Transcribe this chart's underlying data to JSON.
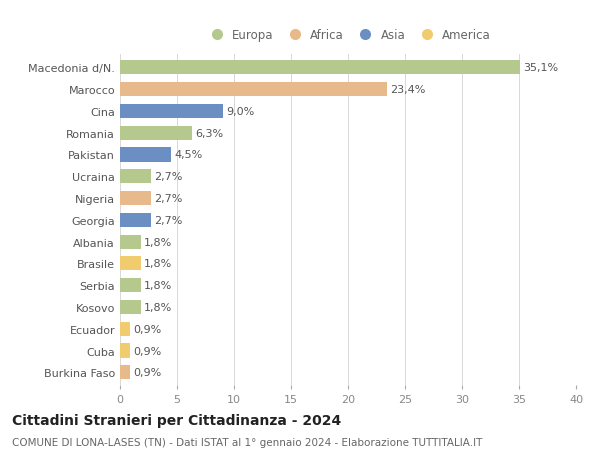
{
  "categories": [
    "Macedonia d/N.",
    "Marocco",
    "Cina",
    "Romania",
    "Pakistan",
    "Ucraina",
    "Nigeria",
    "Georgia",
    "Albania",
    "Brasile",
    "Serbia",
    "Kosovo",
    "Ecuador",
    "Cuba",
    "Burkina Faso"
  ],
  "values": [
    35.1,
    23.4,
    9.0,
    6.3,
    4.5,
    2.7,
    2.7,
    2.7,
    1.8,
    1.8,
    1.8,
    1.8,
    0.9,
    0.9,
    0.9
  ],
  "labels": [
    "35,1%",
    "23,4%",
    "9,0%",
    "6,3%",
    "4,5%",
    "2,7%",
    "2,7%",
    "2,7%",
    "1,8%",
    "1,8%",
    "1,8%",
    "1,8%",
    "0,9%",
    "0,9%",
    "0,9%"
  ],
  "continents": [
    "Europa",
    "Africa",
    "Asia",
    "Europa",
    "Asia",
    "Europa",
    "Africa",
    "Asia",
    "Europa",
    "America",
    "Europa",
    "Europa",
    "America",
    "America",
    "Africa"
  ],
  "colors": {
    "Europa": "#b5c98e",
    "Africa": "#e8b98a",
    "Asia": "#6b8fc2",
    "America": "#f0cc6e"
  },
  "legend_order": [
    "Europa",
    "Africa",
    "Asia",
    "America"
  ],
  "title": "Cittadini Stranieri per Cittadinanza - 2024",
  "subtitle": "COMUNE DI LONA-LASES (TN) - Dati ISTAT al 1° gennaio 2024 - Elaborazione TUTTITALIA.IT",
  "xlim": [
    0,
    40
  ],
  "xticks": [
    0,
    5,
    10,
    15,
    20,
    25,
    30,
    35,
    40
  ],
  "background_color": "#ffffff",
  "grid_color": "#d8d8d8",
  "bar_height": 0.65,
  "title_fontsize": 10,
  "subtitle_fontsize": 7.5,
  "tick_fontsize": 8,
  "label_fontsize": 8,
  "legend_fontsize": 8.5
}
